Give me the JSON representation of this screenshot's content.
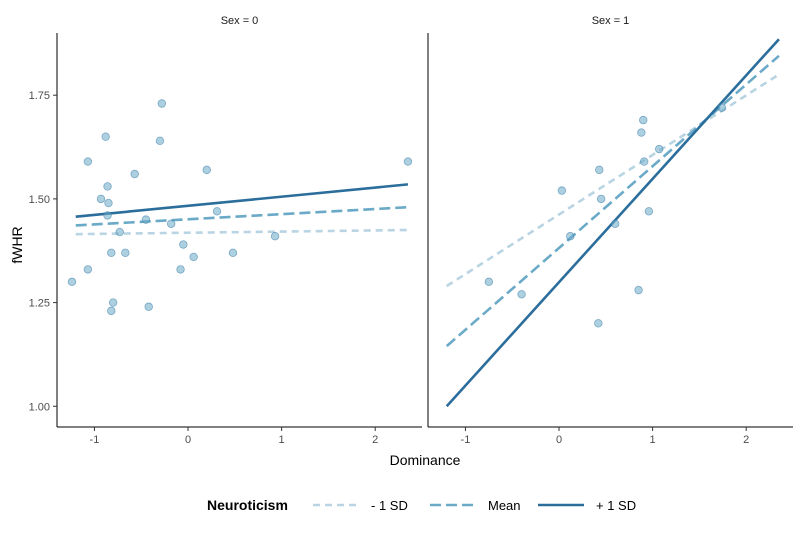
{
  "chart_data": {
    "type": "scatter",
    "xlabel": "Dominance",
    "ylabel": "fWHR",
    "xlim": [
      -1.4,
      2.5
    ],
    "ylim": [
      0.95,
      1.9
    ],
    "x_ticks": [
      -1,
      0,
      1,
      2
    ],
    "x_tick_labels": [
      "-1",
      "0",
      "1",
      "2"
    ],
    "y_ticks": [
      1.0,
      1.25,
      1.5,
      1.75
    ],
    "y_tick_labels": [
      "1.00",
      "1.25",
      "1.50",
      "1.75"
    ],
    "grid": false,
    "legend": {
      "title": "Neuroticism",
      "position": "bottom",
      "entries": [
        {
          "label": "- 1 SD",
          "color": "#b9d4e2",
          "dash": "dashed"
        },
        {
          "label": "Mean",
          "color": "#6aaac8",
          "dash": "dashed"
        },
        {
          "label": "+ 1 SD",
          "color": "#2b6e9c",
          "dash": "solid"
        }
      ]
    },
    "panels": [
      {
        "strip": "Sex = 0",
        "points": [
          [
            -1.24,
            1.3
          ],
          [
            -1.07,
            1.59
          ],
          [
            -1.07,
            1.33
          ],
          [
            -0.93,
            1.5
          ],
          [
            -0.88,
            1.65
          ],
          [
            -0.86,
            1.53
          ],
          [
            -0.86,
            1.46
          ],
          [
            -0.85,
            1.49
          ],
          [
            -0.82,
            1.37
          ],
          [
            -0.82,
            1.23
          ],
          [
            -0.8,
            1.25
          ],
          [
            -0.73,
            1.42
          ],
          [
            -0.67,
            1.37
          ],
          [
            -0.57,
            1.56
          ],
          [
            -0.45,
            1.45
          ],
          [
            -0.42,
            1.24
          ],
          [
            -0.3,
            1.64
          ],
          [
            -0.28,
            1.73
          ],
          [
            -0.18,
            1.44
          ],
          [
            -0.08,
            1.33
          ],
          [
            -0.05,
            1.39
          ],
          [
            0.06,
            1.36
          ],
          [
            0.2,
            1.57
          ],
          [
            0.31,
            1.47
          ],
          [
            0.48,
            1.37
          ],
          [
            0.93,
            1.41
          ],
          [
            2.35,
            1.59
          ]
        ],
        "lines": [
          {
            "label": "- 1 SD",
            "x": [
              -1.2,
              2.35
            ],
            "y": [
              1.415,
              1.425
            ]
          },
          {
            "label": "Mean",
            "x": [
              -1.2,
              2.35
            ],
            "y": [
              1.436,
              1.48
            ]
          },
          {
            "label": "+ 1 SD",
            "x": [
              -1.2,
              2.35
            ],
            "y": [
              1.457,
              1.535
            ]
          }
        ]
      },
      {
        "strip": "Sex = 1",
        "points": [
          [
            -0.75,
            1.3
          ],
          [
            -0.4,
            1.27
          ],
          [
            0.03,
            1.52
          ],
          [
            0.12,
            1.41
          ],
          [
            0.42,
            1.2
          ],
          [
            0.43,
            1.57
          ],
          [
            0.45,
            1.5
          ],
          [
            0.6,
            1.44
          ],
          [
            0.85,
            1.28
          ],
          [
            0.88,
            1.66
          ],
          [
            0.9,
            1.69
          ],
          [
            0.91,
            1.59
          ],
          [
            0.96,
            1.47
          ],
          [
            1.07,
            1.62
          ],
          [
            1.74,
            1.72
          ]
        ],
        "lines": [
          {
            "label": "- 1 SD",
            "x": [
              -1.2,
              2.35
            ],
            "y": [
              1.29,
              1.8
            ]
          },
          {
            "label": "Mean",
            "x": [
              -1.2,
              2.35
            ],
            "y": [
              1.145,
              1.845
            ]
          },
          {
            "label": "+ 1 SD",
            "x": [
              -1.2,
              2.35
            ],
            "y": [
              1.0,
              1.885
            ]
          }
        ]
      }
    ]
  }
}
